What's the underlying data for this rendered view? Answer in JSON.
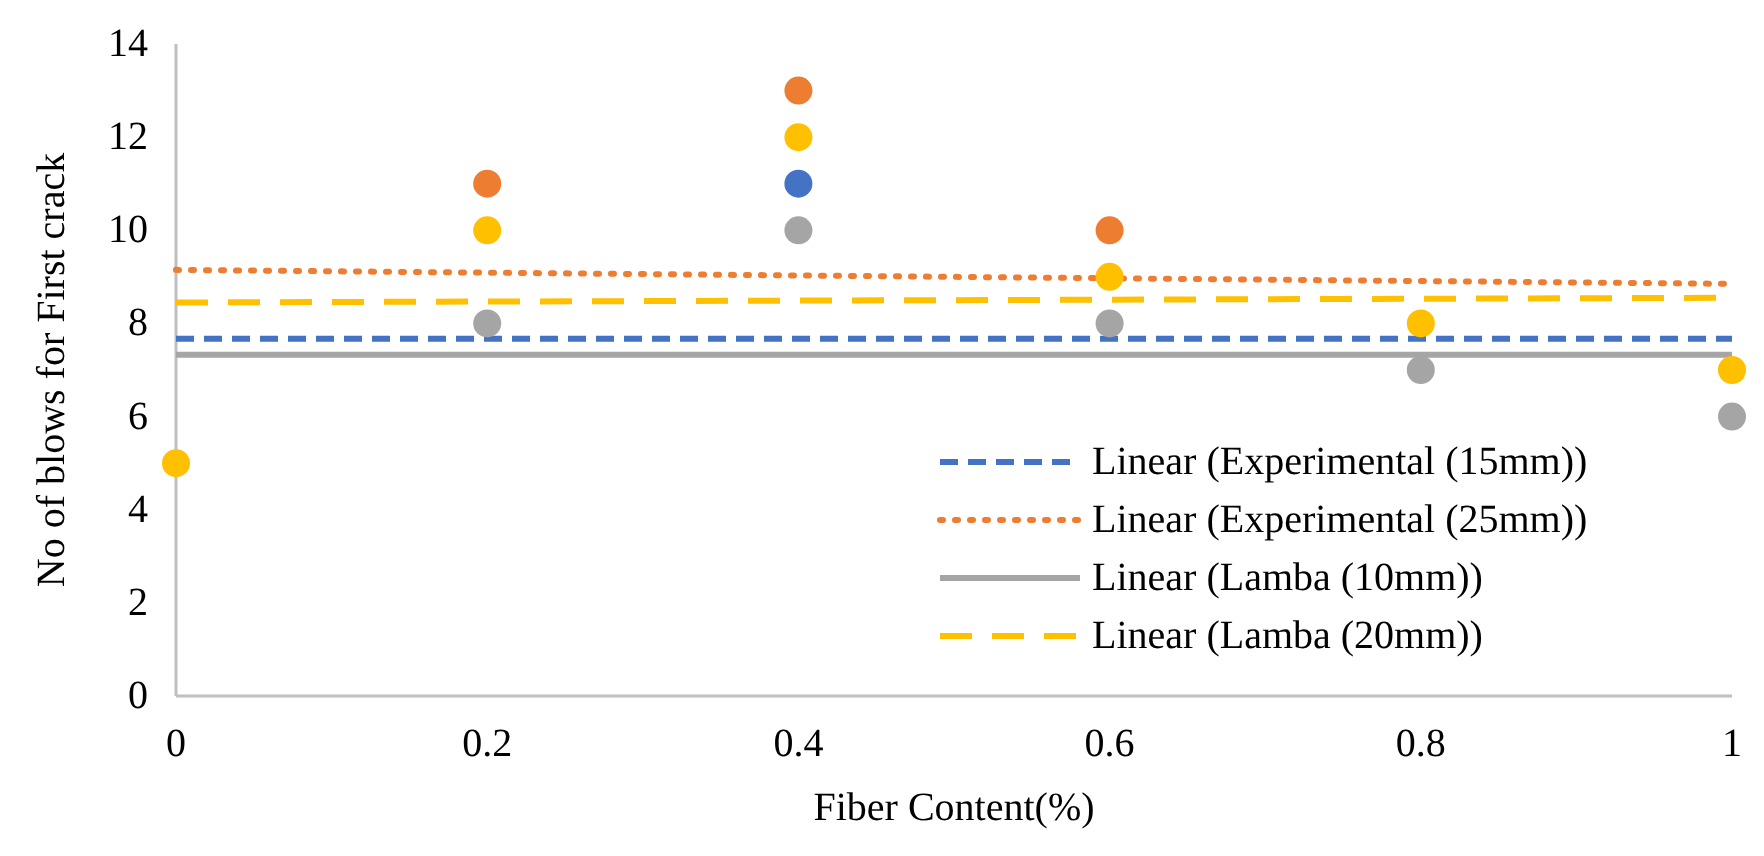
{
  "chart_data": {
    "type": "scatter",
    "xlabel": "Fiber Content(%)",
    "ylabel": "No of blows for First crack",
    "x": [
      0,
      0.2,
      0.4,
      0.6,
      0.8,
      1
    ],
    "xlim": [
      0,
      1
    ],
    "xticks": [
      0,
      0.2,
      0.4,
      0.6,
      0.8,
      1
    ],
    "ylim": [
      0,
      14
    ],
    "yticks": [
      0,
      2,
      4,
      6,
      8,
      10,
      12,
      14
    ],
    "grid": false,
    "legend": "bottom right",
    "marker": "circle",
    "series": [
      {
        "color": "#4472c4",
        "values": [
          null,
          null,
          11,
          null,
          null,
          null
        ]
      },
      {
        "color": "#ed7d31",
        "values": [
          null,
          11,
          13,
          10,
          null,
          null
        ]
      },
      {
        "color": "#a5a5a5",
        "values": [
          null,
          8,
          10,
          8,
          7,
          6
        ]
      },
      {
        "color": "#ffc000",
        "values": [
          5,
          10,
          12,
          9,
          8,
          7
        ]
      },
      {
        "type": "line",
        "name": "Linear (Experimental (15mm))",
        "color": "#4472c4",
        "line_style": "dashed",
        "marker": "none",
        "values": [
          7.67,
          7.67,
          7.67,
          7.67,
          7.67,
          7.67
        ]
      },
      {
        "type": "line",
        "name": "Linear (Experimental (25mm))",
        "color": "#ed7d31",
        "line_style": "dotted",
        "marker": "none",
        "values": [
          9.15,
          9.09,
          9.03,
          8.97,
          8.91,
          8.85
        ]
      },
      {
        "type": "line",
        "name": "Linear (Lamba (10mm))",
        "color": "#a5a5a5",
        "line_style": "solid",
        "marker": "none",
        "values": [
          7.33,
          7.33,
          7.33,
          7.33,
          7.33,
          7.33
        ]
      },
      {
        "type": "line",
        "name": "Linear (Lamba (20mm))",
        "color": "#ffc000",
        "line_style": "longdash",
        "marker": "none",
        "values": [
          8.45,
          8.47,
          8.49,
          8.51,
          8.53,
          8.55
        ]
      }
    ]
  }
}
